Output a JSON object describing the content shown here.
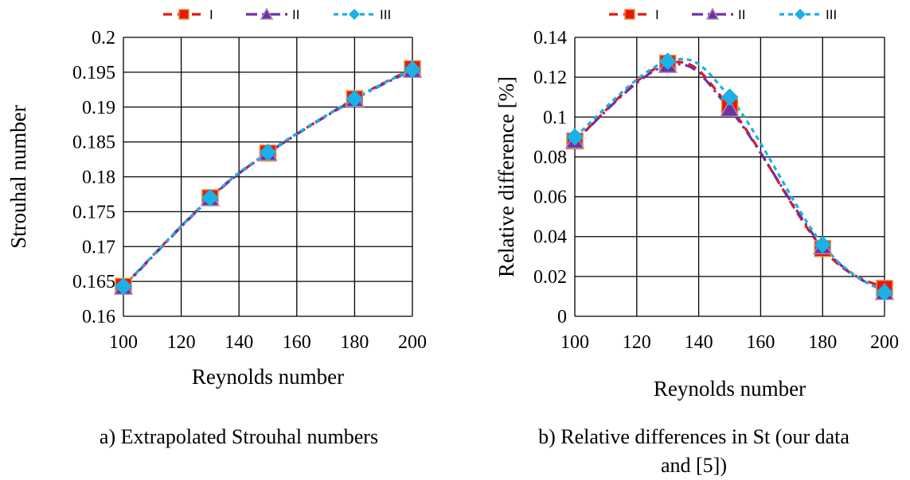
{
  "chart_data": [
    {
      "type": "line",
      "xlabel": "Reynolds number",
      "ylabel": "Strouhal number",
      "xlim": [
        100,
        200
      ],
      "ylim": [
        0.16,
        0.2
      ],
      "x_ticks": [
        "100",
        "120",
        "140",
        "160",
        "180",
        "200"
      ],
      "y_ticks": [
        "0.16",
        "0.165",
        "0.17",
        "0.175",
        "0.18",
        "0.185",
        "0.19",
        "0.195",
        "0.2"
      ],
      "grid": true,
      "legend_position": "top",
      "x": [
        100,
        130,
        150,
        180,
        200
      ],
      "series": [
        {
          "name": "I",
          "values": [
            0.1643,
            0.177,
            0.1834,
            0.1912,
            0.1955
          ],
          "color": "#e8160e",
          "marker": "square",
          "dash": "dash"
        },
        {
          "name": "II",
          "values": [
            0.1642,
            0.1769,
            0.1834,
            0.1911,
            0.1953
          ],
          "color": "#7030a0",
          "marker": "triangle",
          "dash": "dashdot"
        },
        {
          "name": "III",
          "values": [
            0.1643,
            0.177,
            0.1835,
            0.1912,
            0.1954
          ],
          "color": "#1bb0e6",
          "marker": "diamond",
          "dash": "shortdash"
        }
      ],
      "caption": "a)  Extrapolated Strouhal numbers"
    },
    {
      "type": "line",
      "xlabel": "Reynolds number",
      "ylabel": "Relative difference [%]",
      "xlim": [
        100,
        200
      ],
      "ylim": [
        0,
        0.14
      ],
      "x_ticks": [
        "100",
        "120",
        "140",
        "160",
        "180",
        "200"
      ],
      "y_ticks": [
        "0",
        "0.02",
        "0.04",
        "0.06",
        "0.08",
        "0.1",
        "0.12",
        "0.14"
      ],
      "grid": true,
      "legend_position": "top",
      "x": [
        100,
        130,
        150,
        180,
        200
      ],
      "series": [
        {
          "name": "I",
          "values": [
            0.088,
            0.127,
            0.105,
            0.034,
            0.014
          ],
          "color": "#e8160e",
          "marker": "square",
          "dash": "dash"
        },
        {
          "name": "II",
          "values": [
            0.088,
            0.126,
            0.104,
            0.035,
            0.012
          ],
          "color": "#7030a0",
          "marker": "triangle",
          "dash": "dashdot"
        },
        {
          "name": "III",
          "values": [
            0.09,
            0.128,
            0.11,
            0.036,
            0.012
          ],
          "color": "#1bb0e6",
          "marker": "diamond",
          "dash": "shortdash"
        }
      ],
      "caption_line1": "b) Relative differences in St (our data",
      "caption_line2": "and [5])"
    }
  ]
}
